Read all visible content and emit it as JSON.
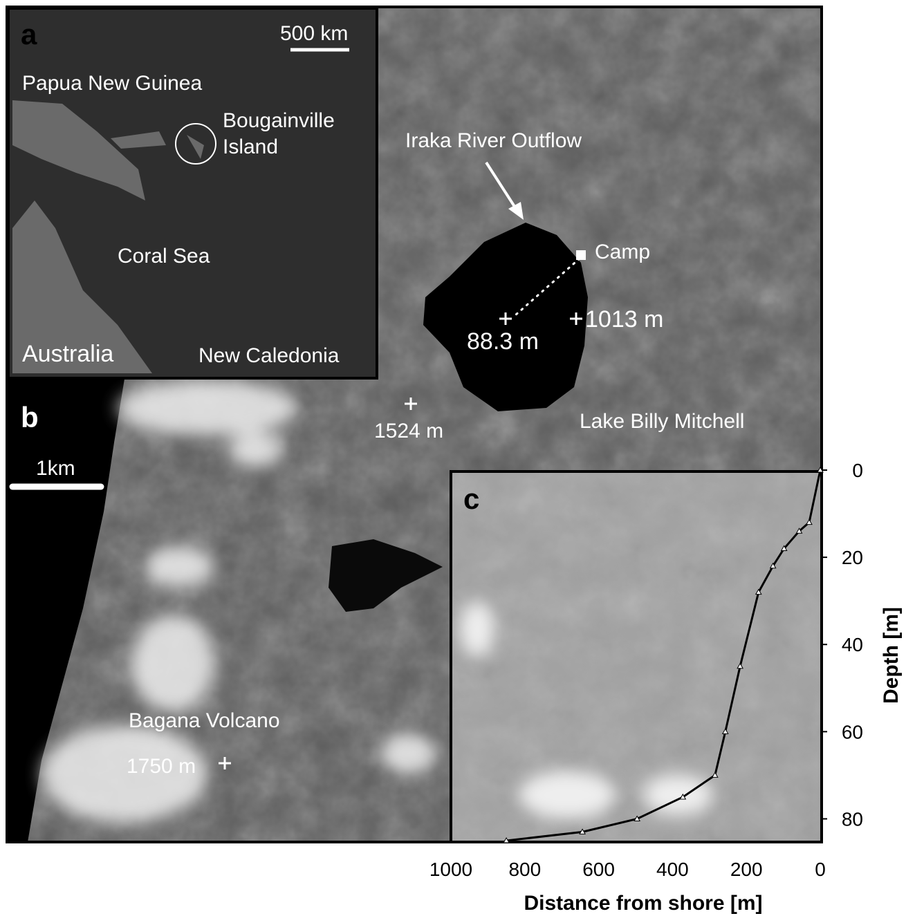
{
  "panel_a": {
    "letter": "a",
    "scale_bar": "500 km",
    "labels": [
      "Papua New Guinea",
      "Bougainville Island",
      "Coral Sea",
      "Australia",
      "New Caledonia"
    ]
  },
  "panel_b": {
    "letter": "b",
    "scale_bar": "1km",
    "labels": [
      "Iraka River Outflow",
      "Camp",
      "88.3 m",
      "1013 m",
      "1524 m",
      "Lake Billy Mitchell",
      "Bagana Volcano",
      "1750 m"
    ]
  },
  "chart_data": {
    "type": "line",
    "panel_label": "c",
    "x_label": "Distance from shore [m]",
    "y_label": "Depth [m]",
    "x": [
      0,
      30,
      57,
      98,
      128,
      167,
      217,
      257,
      285,
      372,
      496,
      644,
      850
    ],
    "values": [
      0,
      12,
      14,
      18,
      22,
      28,
      45,
      60,
      70,
      75,
      80,
      83,
      85
    ],
    "color": "#000000",
    "xlim": [
      1000,
      0
    ],
    "xticks": [
      1000,
      800,
      600,
      400,
      200,
      0
    ],
    "ylim": [
      85,
      0
    ],
    "yticks": [
      0,
      20,
      40,
      60,
      80
    ]
  }
}
